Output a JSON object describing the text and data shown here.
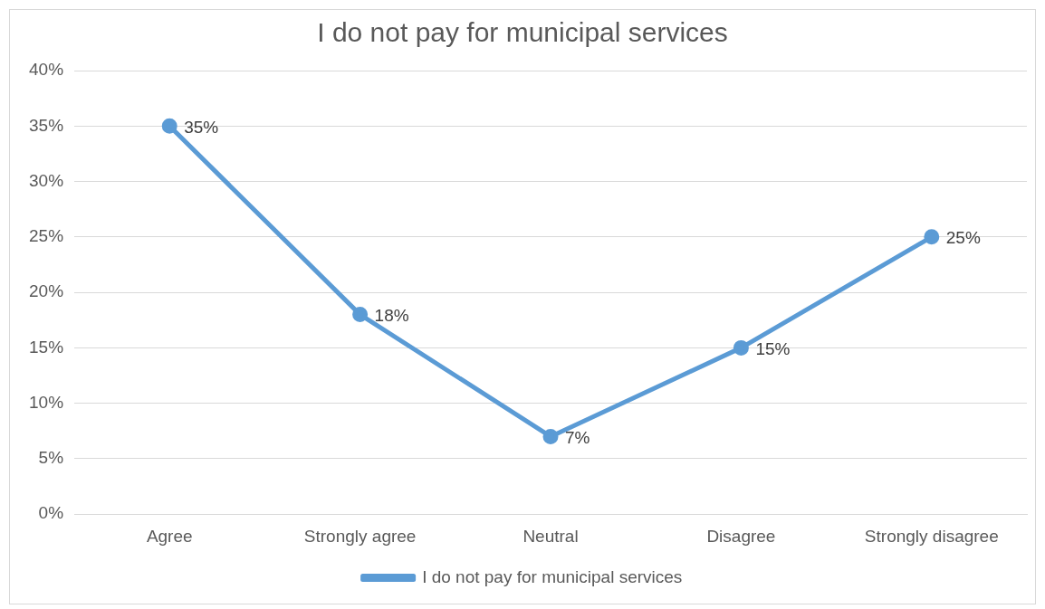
{
  "chart_data": {
    "type": "line",
    "title": "I do not pay for municipal services",
    "categories": [
      "Agree",
      "Strongly agree",
      "Neutral",
      "Disagree",
      "Strongly disagree"
    ],
    "series": [
      {
        "name": "I do not pay for municipal services",
        "color": "#5b9bd5",
        "values": [
          35,
          18,
          7,
          15,
          25
        ],
        "value_labels": [
          "35%",
          "18%",
          "7%",
          "15%",
          "25%"
        ]
      }
    ],
    "ylim": [
      0,
      40
    ],
    "yticks": [
      {
        "value": 0,
        "label": "0%"
      },
      {
        "value": 5,
        "label": "5%"
      },
      {
        "value": 10,
        "label": "10%"
      },
      {
        "value": 15,
        "label": "15%"
      },
      {
        "value": 20,
        "label": "20%"
      },
      {
        "value": 25,
        "label": "25%"
      },
      {
        "value": 30,
        "label": "30%"
      },
      {
        "value": 35,
        "label": "35%"
      },
      {
        "value": 40,
        "label": "40%"
      }
    ],
    "grid": "y",
    "legend": "bottom",
    "marker": "circle",
    "line_style": "solid"
  }
}
